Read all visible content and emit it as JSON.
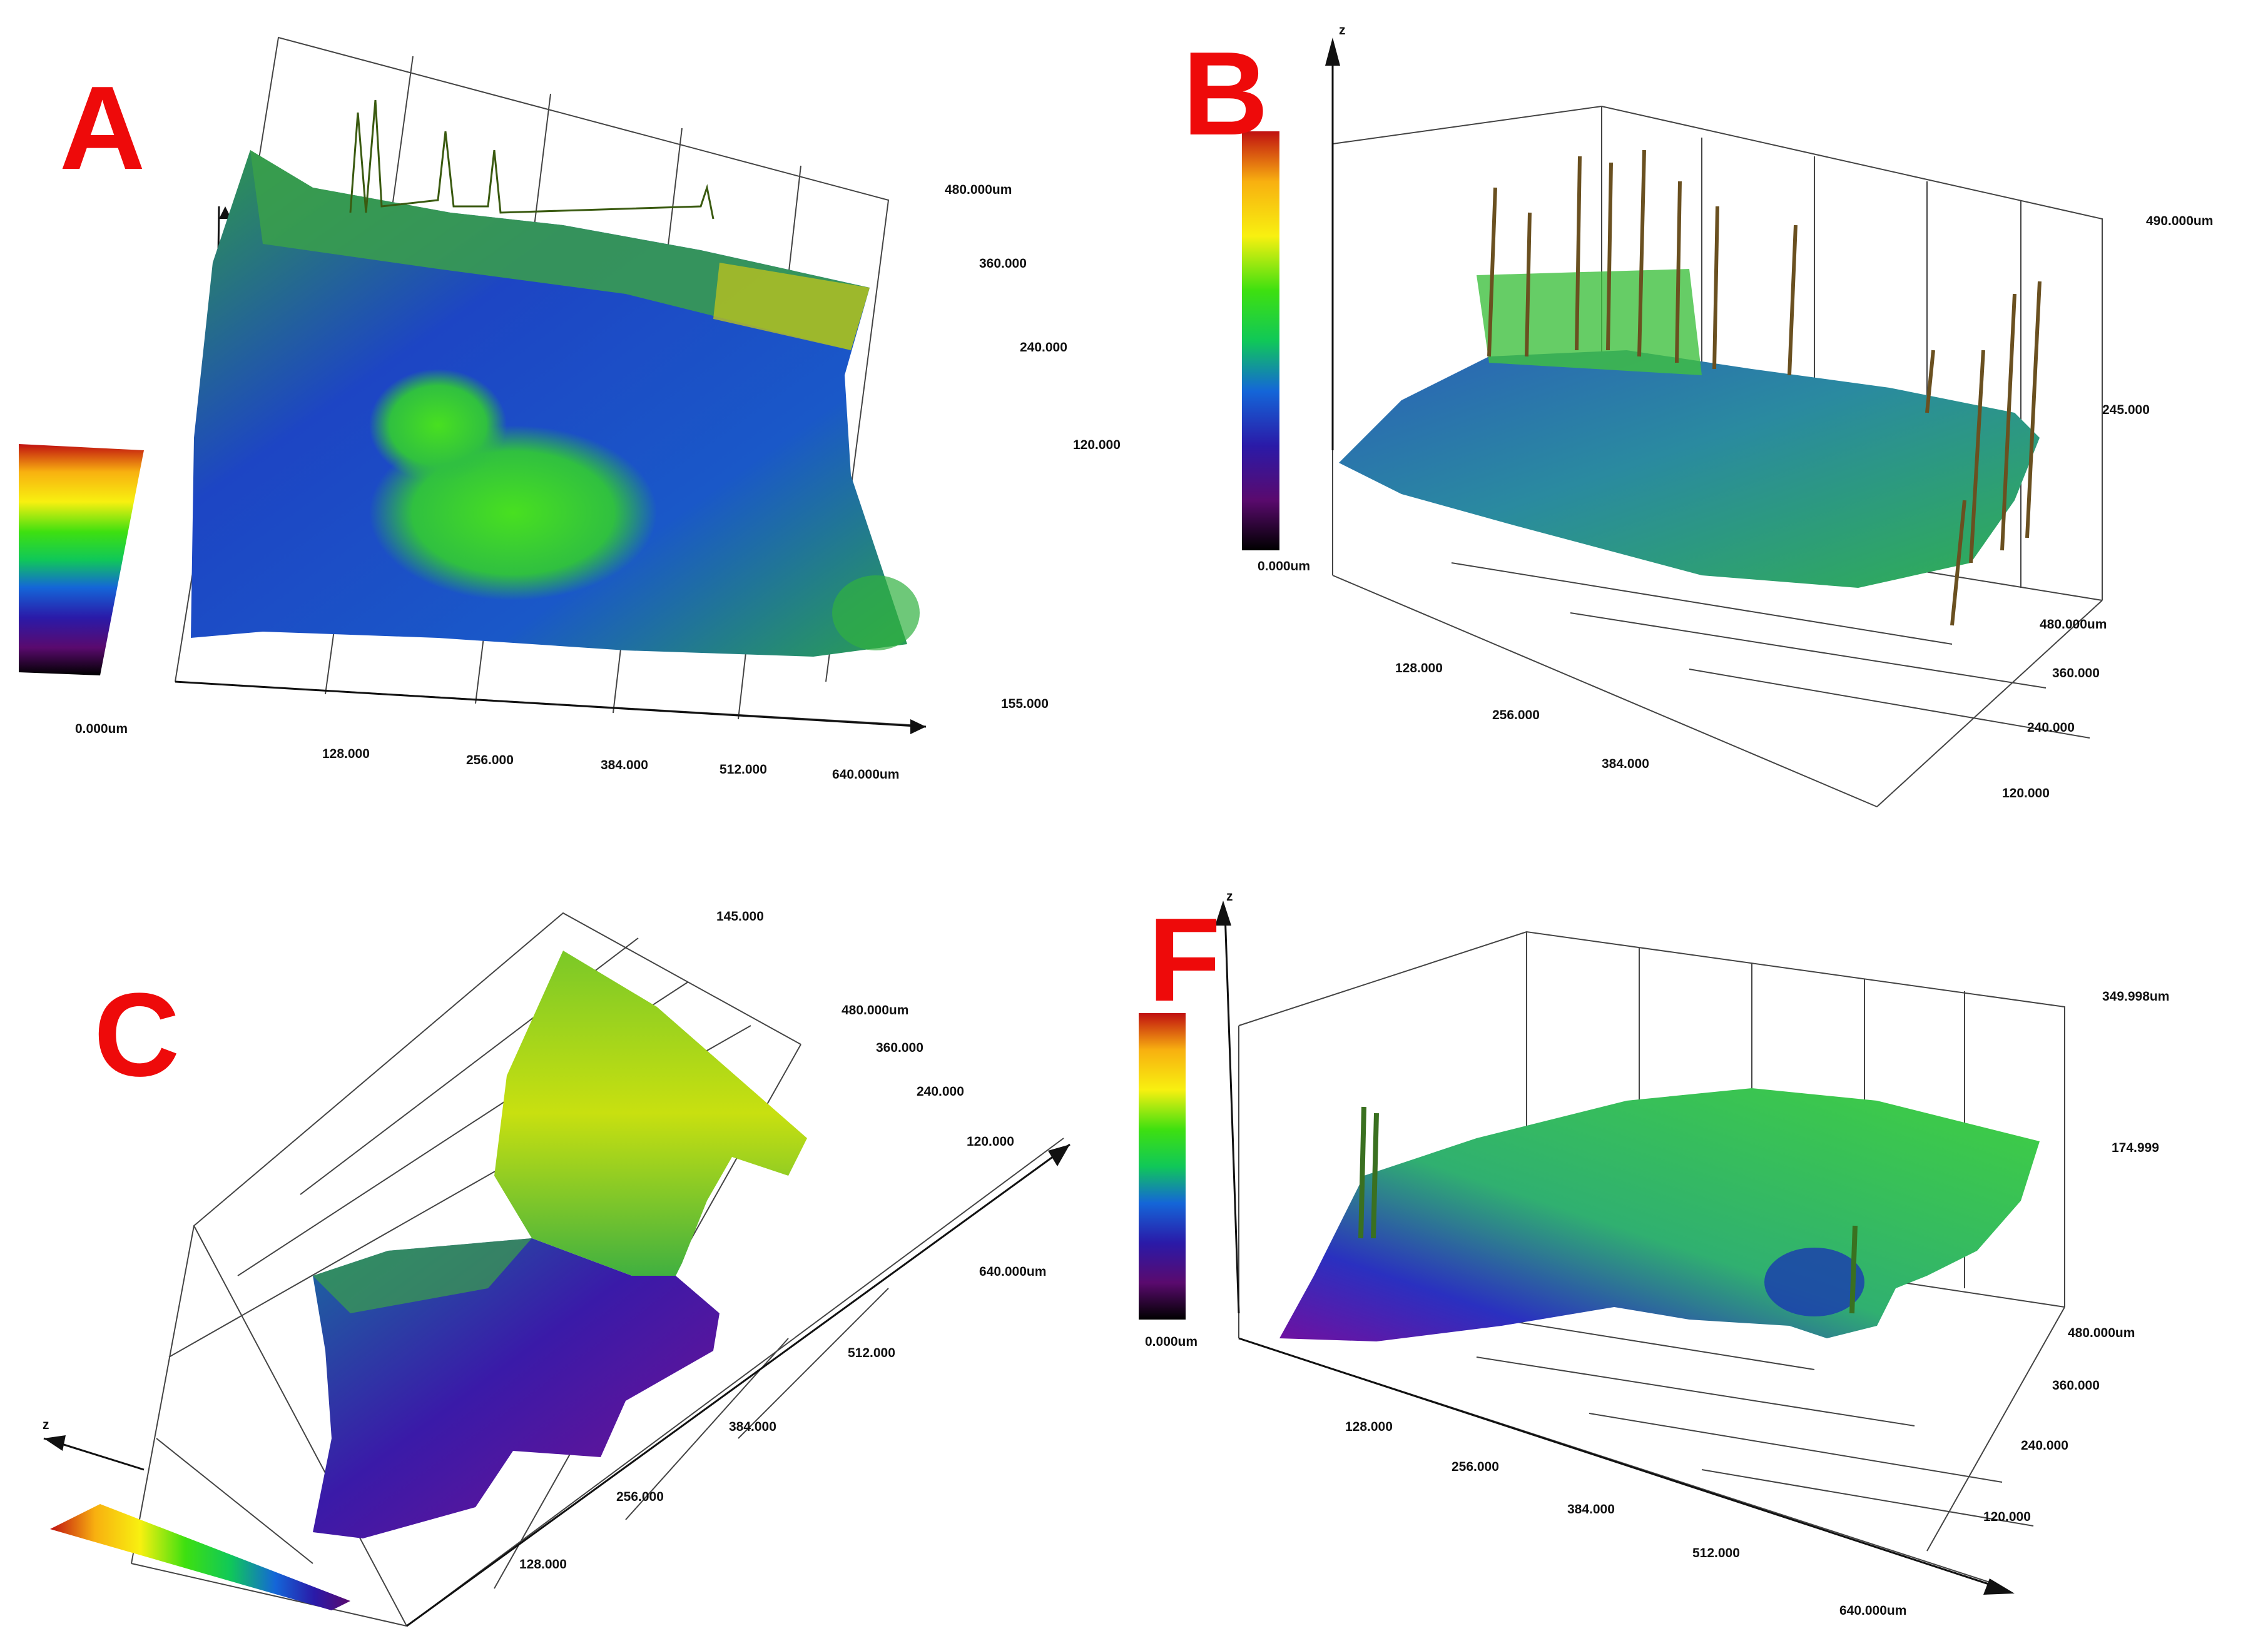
{
  "panels": [
    {
      "id": "A",
      "label": "A",
      "color_min": "0.000um",
      "x_ticks": [
        "128.000",
        "256.000",
        "384.000",
        "512.000",
        "640.000um"
      ],
      "y_ticks": [
        "480.000um",
        "360.000",
        "240.000",
        "120.000"
      ],
      "z_max": "155.000"
    },
    {
      "id": "B",
      "label": "B",
      "color_min": "0.000um",
      "x_ticks": [
        "128.000",
        "256.000",
        "384.000"
      ],
      "y_ticks": [
        "480.000um",
        "360.000",
        "240.000",
        "120.000"
      ],
      "z_ticks": [
        "490.000um",
        "245.000"
      ],
      "z_axis": "z"
    },
    {
      "id": "C",
      "label": "C",
      "x_ticks": [
        "128.000",
        "256.000",
        "384.000",
        "512.000",
        "640.000um"
      ],
      "y_ticks": [
        "480.000um",
        "360.000",
        "240.000",
        "120.000"
      ],
      "z_max": "145.000",
      "z_axis": "z"
    },
    {
      "id": "F",
      "label": "F",
      "color_min": "0.000um",
      "x_ticks": [
        "128.000",
        "256.000",
        "384.000",
        "512.000",
        "640.000um"
      ],
      "y_ticks": [
        "480.000um",
        "360.000",
        "240.000",
        "120.000"
      ],
      "z_ticks": [
        "349.998um",
        "174.999"
      ],
      "z_axis": "z"
    }
  ],
  "colorscale": [
    "#000000",
    "#5a0a6e",
    "#2a1aa8",
    "#1466d8",
    "#10b0c0",
    "#10c858",
    "#3ee010",
    "#c8f010",
    "#f8f010",
    "#f8b010",
    "#f05010",
    "#c01010"
  ],
  "chart_data": [
    {
      "type": "heatmap",
      "title": "A",
      "xlabel": "",
      "ylabel": "",
      "x_range_um": [
        0,
        640
      ],
      "y_range_um": [
        0,
        480
      ],
      "z_range_um": [
        0,
        155
      ],
      "colorbar_min": "0.000um"
    },
    {
      "type": "heatmap",
      "title": "B",
      "xlabel": "",
      "ylabel": "",
      "zlabel": "z",
      "x_range_um": [
        0,
        384
      ],
      "y_range_um": [
        0,
        480
      ],
      "z_range_um": [
        0,
        490
      ],
      "colorbar_min": "0.000um"
    },
    {
      "type": "heatmap",
      "title": "C",
      "xlabel": "",
      "ylabel": "",
      "zlabel": "z",
      "x_range_um": [
        0,
        640
      ],
      "y_range_um": [
        0,
        480
      ],
      "z_range_um": [
        0,
        145
      ]
    },
    {
      "type": "heatmap",
      "title": "F",
      "xlabel": "",
      "ylabel": "",
      "zlabel": "z",
      "x_range_um": [
        0,
        640
      ],
      "y_range_um": [
        0,
        480
      ],
      "z_range_um": [
        0,
        349.998
      ],
      "colorbar_min": "0.000um"
    }
  ]
}
